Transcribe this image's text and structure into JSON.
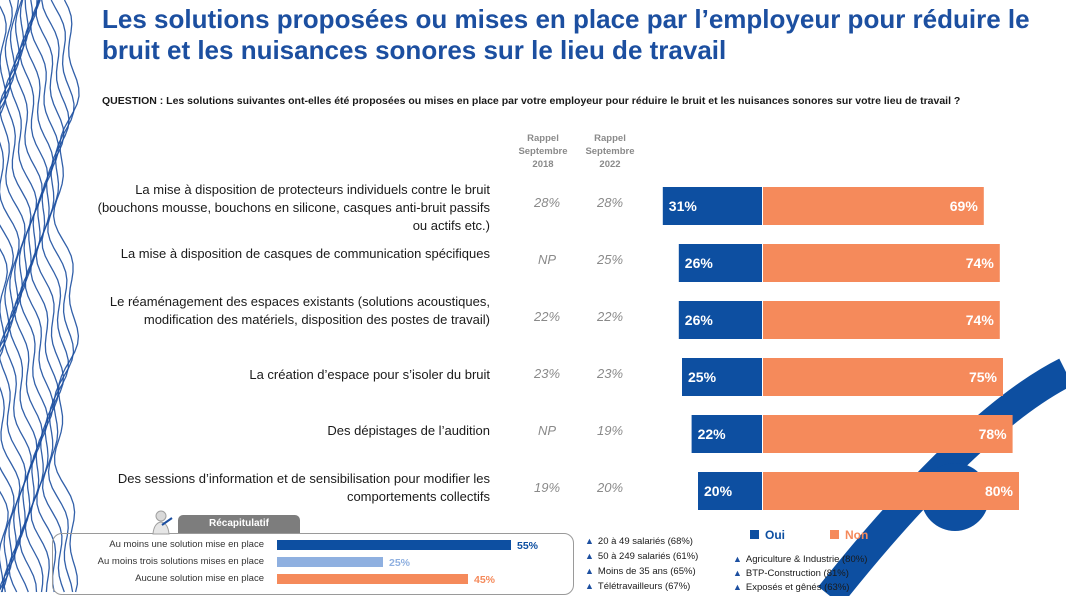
{
  "title": "Les solutions proposées ou mises en place par l’employeur pour réduire le bruit et les nuisances sonores sur le lieu de travail",
  "question": "QUESTION : Les solutions suivantes ont-elles été proposées ou mises en place par votre employeur pour réduire le bruit et les nuisances sonores sur votre lieu de travail ?",
  "column_headers": {
    "rappel_2018": [
      "Rappel",
      "Septembre",
      "2018"
    ],
    "rappel_2022": [
      "Rappel",
      "Septembre",
      "2022"
    ]
  },
  "colors": {
    "oui": "#0d4fa1",
    "non": "#f58a5b",
    "accent": "#1c4fa0",
    "recap_light": "#8fb0e0"
  },
  "chart_data": {
    "type": "bar",
    "orientation": "horizontal",
    "stacked": true,
    "categories": [
      "La mise à disposition de protecteurs individuels contre le bruit (bouchons mousse, bouchons en silicone, casques anti-bruit passifs ou actifs etc.)",
      "La mise à disposition de casques de communication spécifiques",
      "Le réaménagement des espaces existants (solutions acoustiques, modification des matériels, disposition des postes de travail)",
      "La création d’espace pour s’isoler du bruit",
      "Des dépistages de l’audition",
      "Des sessions d’information et de sensibilisation pour modifier les comportements collectifs"
    ],
    "series": [
      {
        "name": "Oui",
        "values": [
          31,
          26,
          26,
          25,
          22,
          20
        ],
        "labels": [
          "31%",
          "26%",
          "26%",
          "25%",
          "22%",
          "20%"
        ]
      },
      {
        "name": "Non",
        "values": [
          69,
          74,
          74,
          75,
          78,
          80
        ],
        "labels": [
          "69%",
          "74%",
          "74%",
          "75%",
          "78%",
          "80%"
        ]
      }
    ],
    "rappel_2018": [
      "28%",
      "NP",
      "22%",
      "23%",
      "NP",
      "19%"
    ],
    "rappel_2022": [
      "28%",
      "25%",
      "22%",
      "23%",
      "19%",
      "20%"
    ],
    "legend": [
      "Oui",
      "Non"
    ]
  },
  "recap": {
    "header": "Récapitulatif",
    "items": [
      {
        "label": "Au moins une solution mise en place",
        "value": 55,
        "text": "55%",
        "color": "#0d4fa1"
      },
      {
        "label": "Au moins trois solutions mises en place",
        "value": 25,
        "text": "25%",
        "color": "#8fb0e0"
      },
      {
        "label": "Aucune solution mise en place",
        "value": 45,
        "text": "45%",
        "color": "#f58a5b"
      }
    ]
  },
  "subgroups_left": [
    "20 à 49 salariés (68%)",
    "50 à 249 salariés (61%)",
    "Moins de 35 ans (65%)",
    "Télétravailleurs (67%)"
  ],
  "subgroups_right": [
    "Agriculture & Industrie (80%)",
    "BTP-Construction (81%)",
    "Exposés et gênés (63%)"
  ]
}
